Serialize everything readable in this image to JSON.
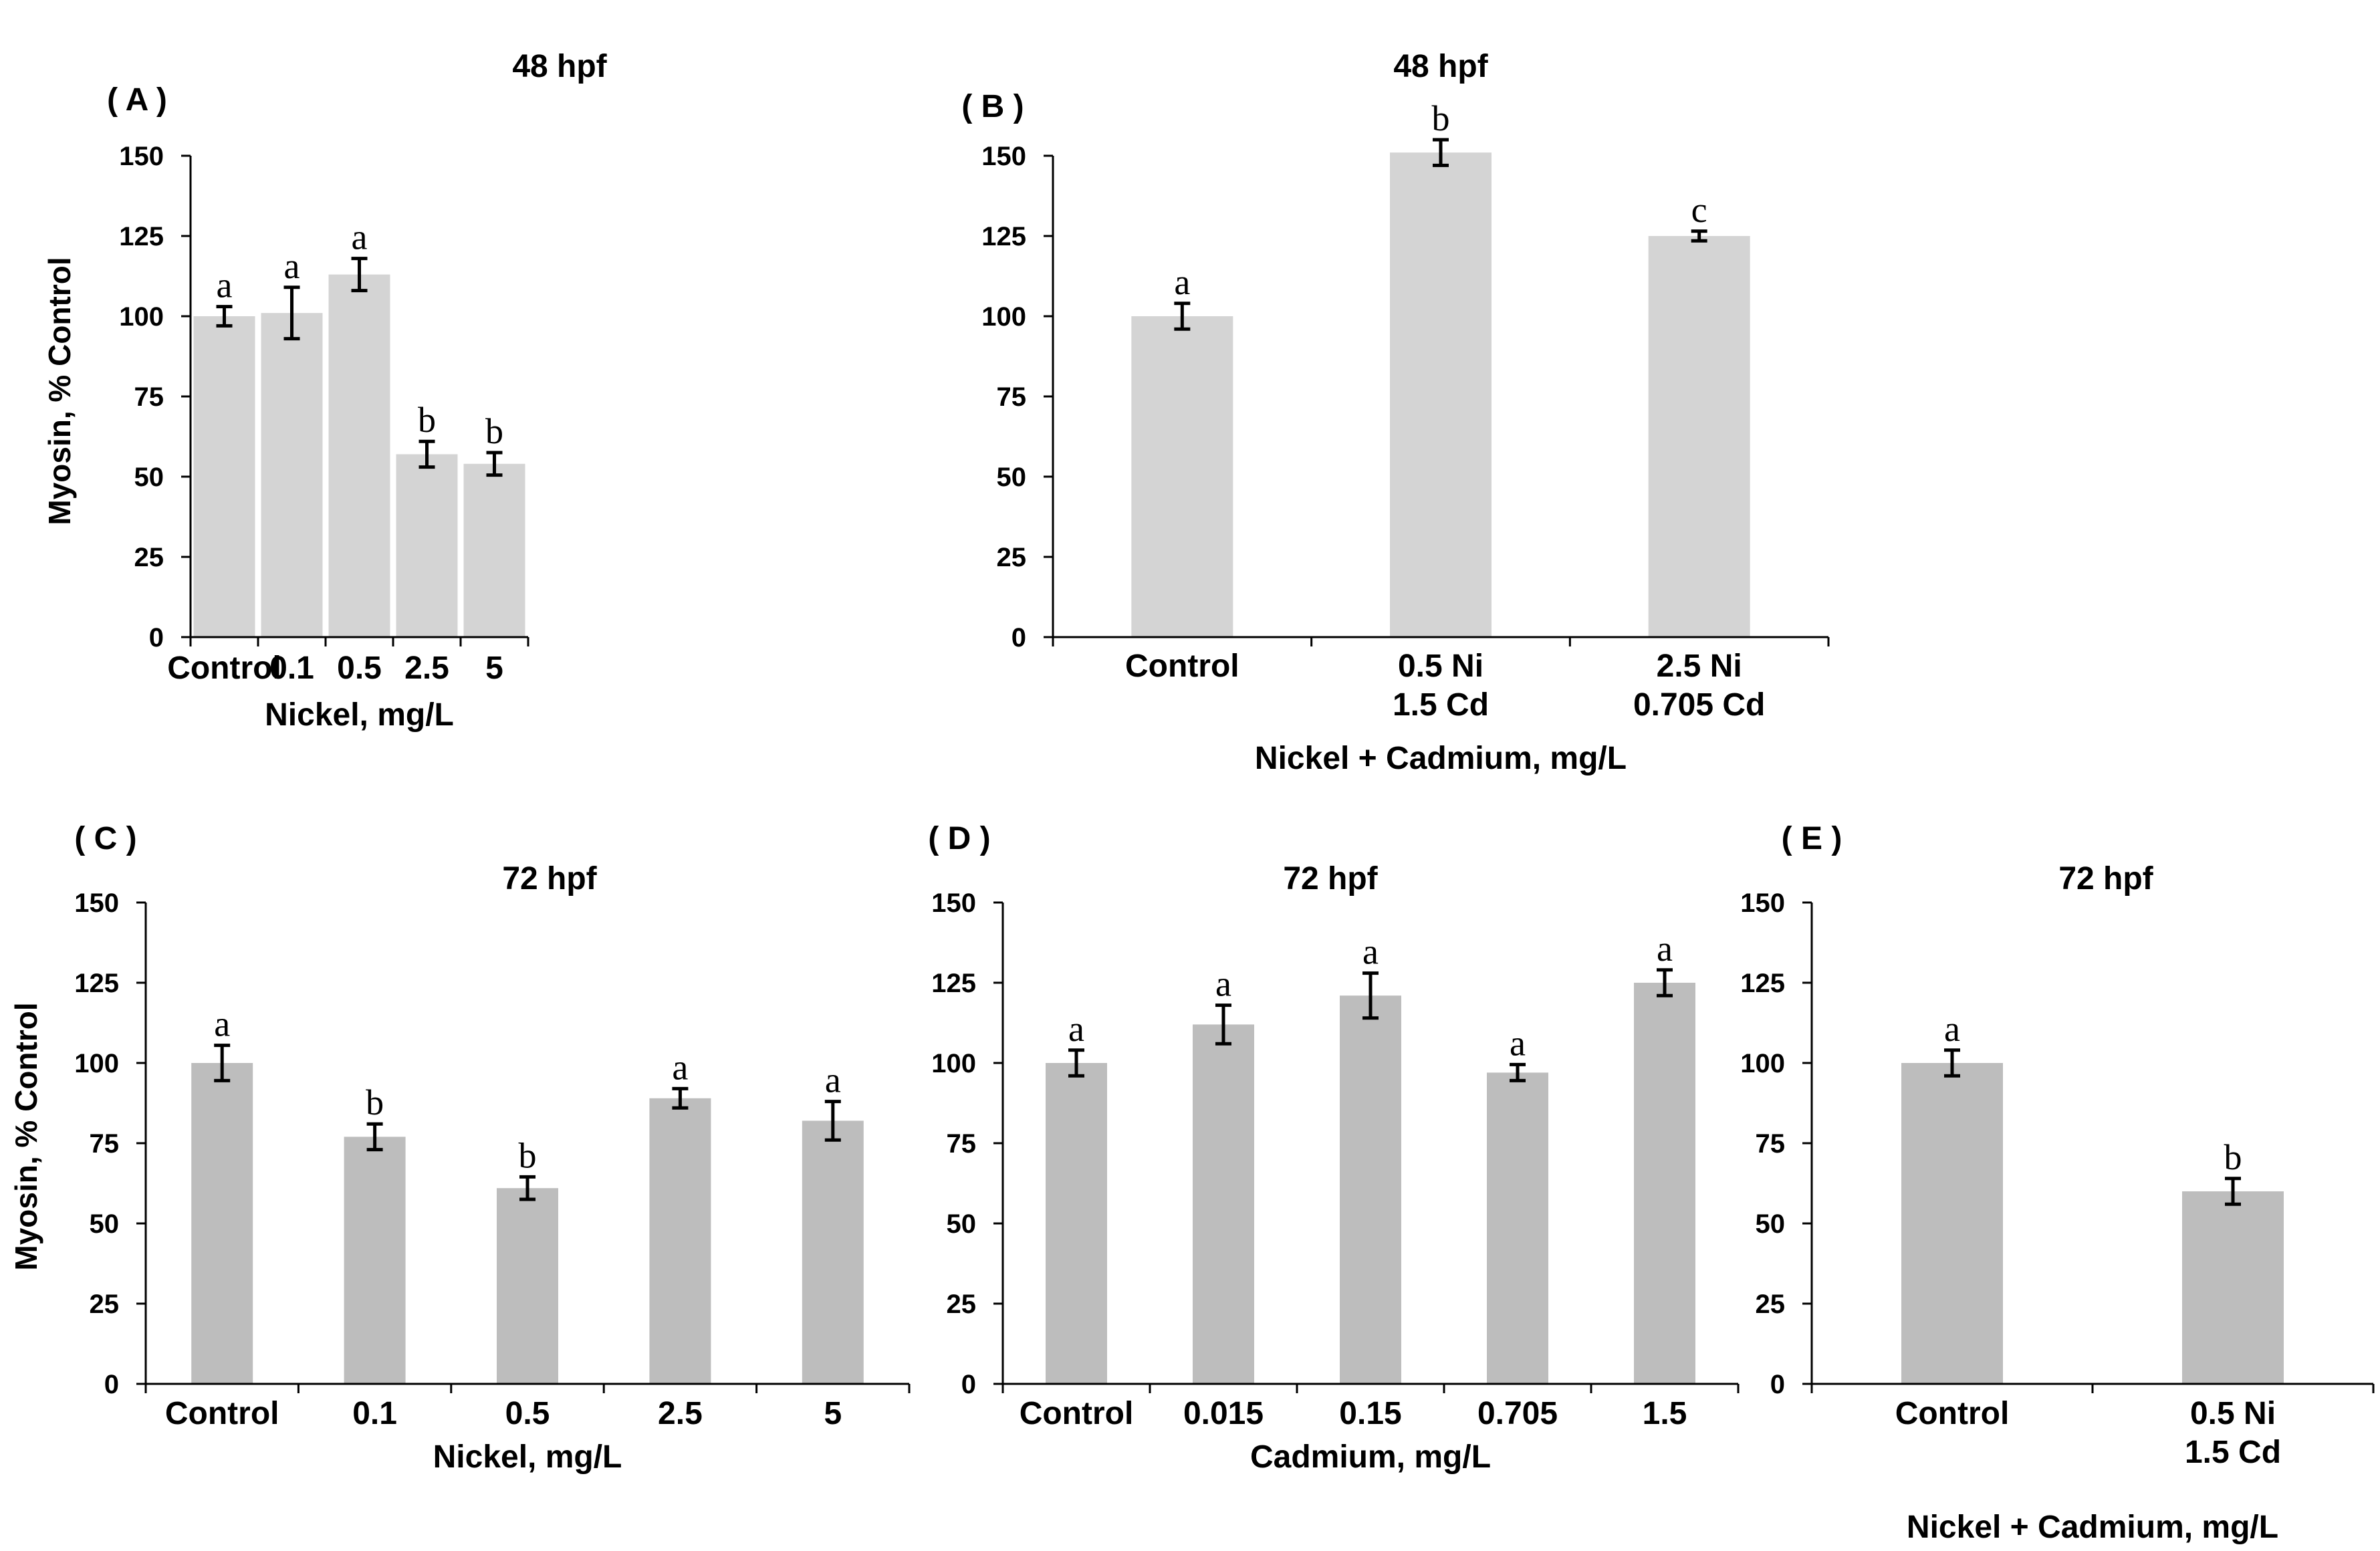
{
  "chart_data": [
    {
      "id": "A",
      "panel_label": "( A )",
      "type": "bar",
      "title": "48 hpf",
      "xlabel": "Nickel, mg/L",
      "ylabel": "Myosin, % Control",
      "ylim": [
        0,
        150
      ],
      "yticks": [
        "0",
        "25",
        "50",
        "75",
        "100",
        "125",
        "150"
      ],
      "categories": [
        [
          "Control"
        ],
        [
          "0.1"
        ],
        [
          "0.5"
        ],
        [
          "2.5"
        ],
        [
          "5"
        ]
      ],
      "values": [
        100,
        101,
        113,
        57,
        54
      ],
      "errors": [
        3,
        8,
        5,
        4,
        3.5
      ],
      "letters": [
        "a",
        "a",
        "a",
        "b",
        "b"
      ],
      "bar_color": "#d4d4d4"
    },
    {
      "id": "B",
      "panel_label": "( B )",
      "type": "bar",
      "title": "48 hpf",
      "xlabel": "Nickel + Cadmium, mg/L",
      "ylabel": "",
      "ylim": [
        0,
        150
      ],
      "yticks": [
        "0",
        "25",
        "50",
        "75",
        "100",
        "125",
        "150"
      ],
      "categories": [
        [
          "Control"
        ],
        [
          "0.5 Ni",
          "1.5 Cd"
        ],
        [
          "2.5 Ni",
          "0.705 Cd"
        ]
      ],
      "values": [
        100,
        151,
        125
      ],
      "errors": [
        4,
        4,
        1.5
      ],
      "letters": [
        "a",
        "b",
        "c"
      ],
      "bar_color": "#d4d4d4"
    },
    {
      "id": "C",
      "panel_label": "( C )",
      "type": "bar",
      "title": "72 hpf",
      "xlabel": "Nickel, mg/L",
      "ylabel": "Myosin, % Control",
      "ylim": [
        0,
        150
      ],
      "yticks": [
        "0",
        "25",
        "50",
        "75",
        "100",
        "125",
        "150"
      ],
      "categories": [
        [
          "Control"
        ],
        [
          "0.1"
        ],
        [
          "0.5"
        ],
        [
          "2.5"
        ],
        [
          "5"
        ]
      ],
      "values": [
        100,
        77,
        61,
        89,
        82
      ],
      "errors": [
        5.5,
        4,
        3.5,
        3,
        6
      ],
      "letters": [
        "a",
        "b",
        "b",
        "a",
        "a"
      ],
      "bar_color": "#bdbdbd"
    },
    {
      "id": "D",
      "panel_label": "( D )",
      "type": "bar",
      "title": "72 hpf",
      "xlabel": "Cadmium, mg/L",
      "ylabel": "",
      "ylim": [
        0,
        150
      ],
      "yticks": [
        "0",
        "25",
        "50",
        "75",
        "100",
        "125",
        "150"
      ],
      "categories": [
        [
          "Control"
        ],
        [
          "0.015"
        ],
        [
          "0.15"
        ],
        [
          "0.705"
        ],
        [
          "1.5"
        ]
      ],
      "values": [
        100,
        112,
        121,
        97,
        125
      ],
      "errors": [
        4,
        6,
        7,
        2.5,
        4
      ],
      "letters": [
        "a",
        "a",
        "a",
        "a",
        "a"
      ],
      "bar_color": "#bdbdbd"
    },
    {
      "id": "E",
      "panel_label": "( E )",
      "type": "bar",
      "title": "72 hpf",
      "xlabel": "Nickel + Cadmium, mg/L",
      "ylabel": "",
      "ylim": [
        0,
        150
      ],
      "yticks": [
        "0",
        "25",
        "50",
        "75",
        "100",
        "125",
        "150"
      ],
      "categories": [
        [
          "Control"
        ],
        [
          "0.5 Ni",
          "1.5 Cd"
        ]
      ],
      "values": [
        100,
        60
      ],
      "errors": [
        4,
        4
      ],
      "letters": [
        "a",
        "b"
      ],
      "bar_color": "#bdbdbd"
    }
  ]
}
